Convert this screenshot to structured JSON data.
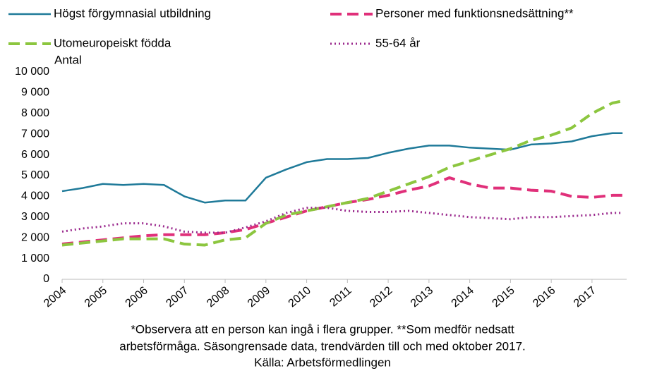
{
  "chart_data": {
    "type": "line",
    "y_label": "Antal",
    "notes": [
      "*Observera att en person kan ingå i flera grupper. **Som medför nedsatt",
      "arbetsförmåga. Säsongrensade data, trendvärden till och med oktober 2017.",
      "Källa: Arbetsförmedlingen"
    ],
    "x": [
      2004,
      2004.5,
      2005,
      2005.5,
      2006,
      2006.5,
      2007,
      2007.5,
      2008,
      2008.5,
      2009,
      2009.5,
      2010,
      2010.5,
      2011,
      2011.5,
      2012,
      2012.5,
      2013,
      2013.5,
      2014,
      2014.5,
      2015,
      2015.5,
      2016,
      2016.5,
      2017,
      2017.5,
      2017.75
    ],
    "xlim": [
      2004,
      2017.85
    ],
    "xticks": [
      2004,
      2005,
      2006,
      2007,
      2008,
      2009,
      2010,
      2011,
      2012,
      2013,
      2014,
      2015,
      2016,
      2017
    ],
    "ylim": [
      0,
      10000
    ],
    "yticks": [
      0,
      {
        "value": 1000,
        "label": "1 000"
      },
      {
        "value": 2000,
        "label": "2 000"
      },
      {
        "value": 3000,
        "label": "3 000"
      },
      {
        "value": 4000,
        "label": "4 000"
      },
      {
        "value": 5000,
        "label": "5 000"
      },
      {
        "value": 6000,
        "label": "6 000"
      },
      {
        "value": 7000,
        "label": "7 000"
      },
      {
        "value": 8000,
        "label": "8 000"
      },
      {
        "value": 9000,
        "label": "9 000"
      },
      {
        "value": 10000,
        "label": "10 000"
      }
    ],
    "series": [
      {
        "name": "Högst förgymnasial utbildning",
        "color": "#1f7a99",
        "style": "solid",
        "values": [
          4250,
          4400,
          4600,
          4550,
          4600,
          4550,
          4000,
          3700,
          3800,
          3800,
          4900,
          5300,
          5650,
          5800,
          5800,
          5850,
          6100,
          6300,
          6450,
          6450,
          6350,
          6300,
          6250,
          6500,
          6550,
          6650,
          6900,
          7050,
          7050
        ]
      },
      {
        "name": "Personer med funktionsnedsättning**",
        "color": "#e0307a",
        "style": "dashed",
        "values": [
          1700,
          1800,
          1900,
          2000,
          2100,
          2150,
          2150,
          2150,
          2250,
          2400,
          2700,
          3000,
          3300,
          3500,
          3700,
          3850,
          4050,
          4300,
          4500,
          4900,
          4600,
          4400,
          4400,
          4300,
          4250,
          4000,
          3950,
          4050,
          4050
        ]
      },
      {
        "name": "Utomeuropeiskt födda",
        "color": "#8cc63f",
        "style": "dashed",
        "values": [
          1650,
          1750,
          1850,
          1950,
          1950,
          1950,
          1700,
          1650,
          1900,
          2000,
          2700,
          3100,
          3300,
          3500,
          3700,
          3900,
          4250,
          4600,
          4950,
          5400,
          5700,
          6000,
          6300,
          6700,
          6950,
          7300,
          8000,
          8500,
          8600
        ]
      },
      {
        "name": "55-64 år",
        "color": "#9b2a8e",
        "style": "dotted",
        "values": [
          2300,
          2450,
          2550,
          2700,
          2700,
          2550,
          2300,
          2250,
          2250,
          2500,
          2800,
          3200,
          3450,
          3450,
          3300,
          3250,
          3250,
          3300,
          3200,
          3100,
          3000,
          2950,
          2900,
          3000,
          3000,
          3050,
          3100,
          3200,
          3200
        ]
      }
    ]
  }
}
